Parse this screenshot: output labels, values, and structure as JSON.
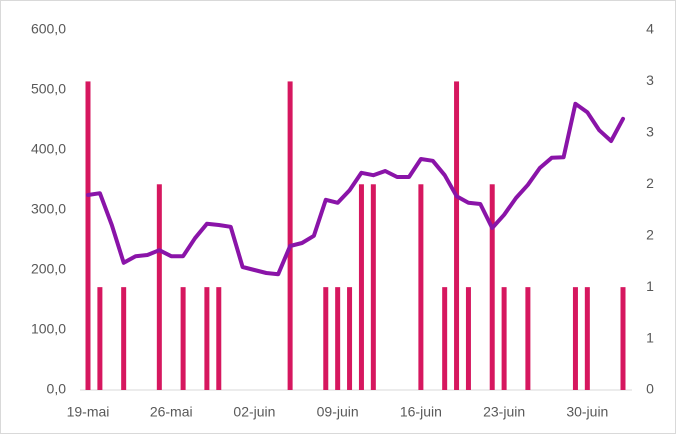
{
  "chart_data": {
    "type": "bar-line",
    "categories": [
      "19-mai",
      null,
      null,
      null,
      null,
      null,
      null,
      "26-mai",
      null,
      null,
      null,
      null,
      null,
      null,
      "02-juin",
      null,
      null,
      null,
      null,
      null,
      null,
      "09-juin",
      null,
      null,
      null,
      null,
      null,
      null,
      "16-juin",
      null,
      null,
      null,
      null,
      null,
      null,
      "23-juin",
      null,
      null,
      null,
      null,
      null,
      null,
      "30-juin",
      null,
      null,
      null
    ],
    "series": [
      {
        "type": "bar",
        "axis": "y2",
        "color": "#d6175f",
        "values": [
          3,
          1,
          null,
          1,
          null,
          null,
          2,
          null,
          1,
          null,
          1,
          1,
          null,
          null,
          null,
          null,
          null,
          3,
          null,
          null,
          1,
          1,
          1,
          2,
          2,
          null,
          null,
          null,
          2,
          null,
          1,
          3,
          1,
          null,
          2,
          1,
          null,
          1,
          null,
          null,
          null,
          1,
          1,
          null,
          null,
          1
        ]
      },
      {
        "type": "line",
        "axis": "y",
        "color": "#8a14a8",
        "values": [
          325,
          328,
          275,
          212,
          223,
          225,
          233,
          223,
          223,
          253,
          277,
          275,
          272,
          205,
          200,
          195,
          193,
          240,
          245,
          257,
          317,
          312,
          333,
          362,
          358,
          365,
          355,
          355,
          385,
          382,
          358,
          323,
          312,
          310,
          270,
          292,
          320,
          342,
          370,
          387,
          388,
          477,
          463,
          433,
          415,
          452
        ]
      }
    ],
    "ylim": [
      0,
      600
    ],
    "yticks": [
      {
        "value": 0,
        "label": "0,0"
      },
      {
        "value": 100,
        "label": "100,0"
      },
      {
        "value": 200,
        "label": "200,0"
      },
      {
        "value": 300,
        "label": "300,0"
      },
      {
        "value": 400,
        "label": "400,0"
      },
      {
        "value": 500,
        "label": "500,0"
      },
      {
        "value": 600,
        "label": "600,0"
      }
    ],
    "y2lim": [
      0,
      3.5
    ],
    "y2ticks": [
      0,
      {
        "value": 0.5,
        "label": "1"
      },
      1,
      {
        "value": 1.5,
        "label": "2"
      },
      2,
      {
        "value": 2.5,
        "label": "3"
      },
      3,
      {
        "value": 3.5,
        "label": "4"
      }
    ]
  }
}
